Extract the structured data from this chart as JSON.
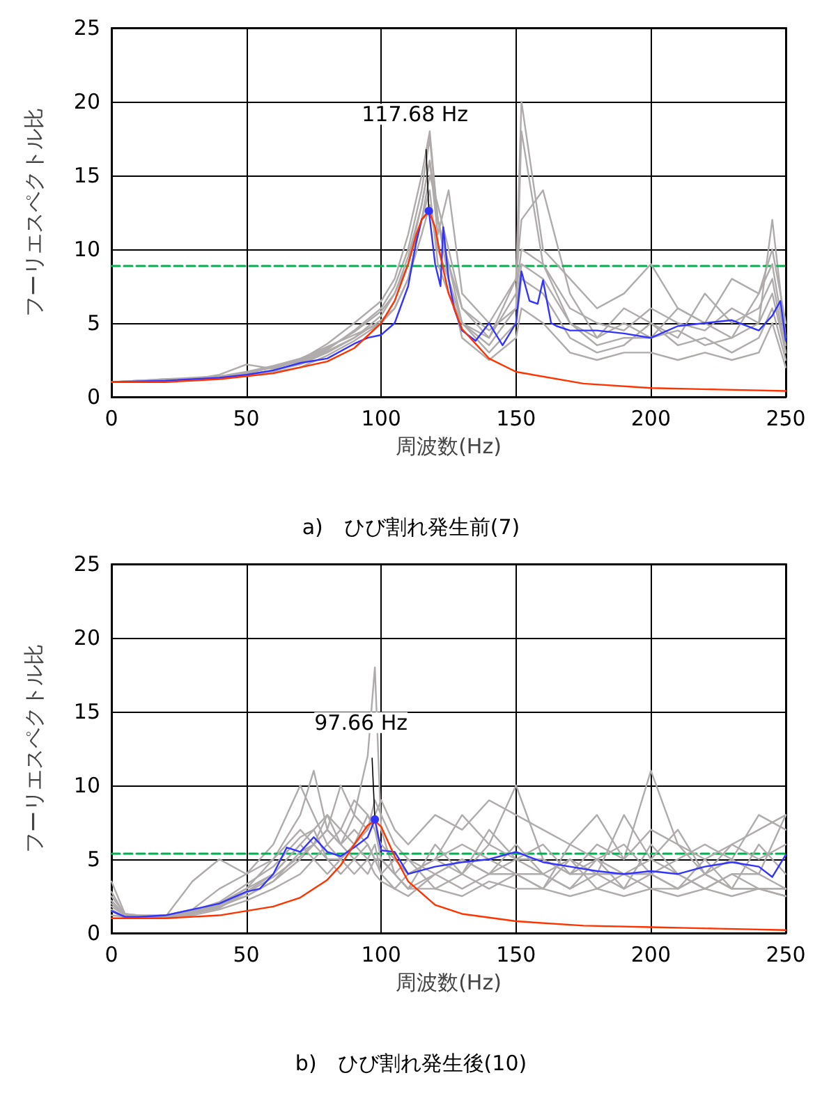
{
  "chart_data": [
    {
      "type": "line",
      "title": "a)　ひび割れ発生前(7)",
      "xlabel": "周波数(Hz)",
      "ylabel": "フーリエスペクトル比",
      "xlim": [
        0,
        250
      ],
      "xticks": [
        0,
        50,
        100,
        150,
        200,
        250
      ],
      "ylim": [
        0,
        25
      ],
      "yticks": [
        0,
        5,
        10,
        15,
        20,
        25
      ],
      "grid": true,
      "marker": "none",
      "line_style": "solid",
      "x": [
        0,
        10,
        20,
        30,
        40,
        50,
        60,
        70,
        80,
        90,
        100,
        105,
        110,
        115,
        118,
        121,
        125,
        130,
        140,
        150,
        152,
        160,
        170,
        180,
        190,
        200,
        210,
        220,
        230,
        240,
        245,
        250
      ],
      "ref_lines": [
        {
          "axis": "y",
          "value": 8.9,
          "color": "#00b050",
          "line_style": "dashed"
        }
      ],
      "annotations": [
        {
          "text": "117.68 Hz",
          "x": 117.68,
          "y": 12.6
        }
      ],
      "series": [
        {
          "color": "#b0abab",
          "values": [
            1,
            1.1,
            1.1,
            1.2,
            1.4,
            1.6,
            2.0,
            2.4,
            3.2,
            4.5,
            6.0,
            7.5,
            10,
            14,
            17.5,
            12,
            9,
            6,
            4.5,
            6,
            18,
            9,
            6,
            5,
            4.5,
            6,
            5,
            4.5,
            6,
            5,
            12,
            4
          ]
        },
        {
          "color": "#b0abab",
          "values": [
            1,
            1,
            1.1,
            1.2,
            1.3,
            1.5,
            1.8,
            2.2,
            3.0,
            4.0,
            5.5,
            7,
            9,
            13,
            16,
            11,
            14,
            7,
            5,
            8,
            12,
            14,
            7,
            4,
            6,
            5,
            4,
            7,
            5,
            6,
            8,
            3
          ]
        },
        {
          "color": "#b0abab",
          "values": [
            1,
            1.1,
            1.2,
            1.3,
            1.4,
            1.7,
            2.1,
            2.6,
            3.4,
            4.2,
            5,
            6,
            8,
            11,
            13,
            10,
            8,
            5,
            3,
            5,
            8,
            7,
            4,
            3,
            3.5,
            5,
            3.5,
            4,
            3,
            4,
            6,
            2.5
          ]
        },
        {
          "color": "#b0abab",
          "values": [
            1,
            1,
            1.1,
            1.1,
            1.3,
            1.4,
            1.7,
            2.0,
            2.8,
            3.8,
            5,
            6.5,
            9,
            12,
            15,
            13,
            10,
            6,
            4,
            7,
            10,
            9,
            5,
            4,
            5,
            4,
            6,
            5,
            4,
            7,
            9,
            3.5
          ]
        },
        {
          "color": "#b0abab",
          "values": [
            1,
            1.1,
            1.1,
            1.2,
            1.5,
            2.2,
            1.9,
            2.5,
            3.6,
            5.0,
            6.5,
            8,
            11,
            15,
            18,
            12,
            8,
            4,
            2.5,
            4,
            6,
            5,
            3,
            2.5,
            3,
            3,
            2.5,
            3,
            2.5,
            3,
            5,
            2
          ]
        },
        {
          "color": "#b0abab",
          "values": [
            1,
            1,
            1.1,
            1.2,
            1.3,
            1.5,
            1.8,
            2.3,
            3.1,
            4.0,
            5.2,
            6,
            8,
            12,
            14,
            9,
            7,
            5,
            3.5,
            6,
            9,
            8,
            5,
            3.5,
            4,
            4,
            4.5,
            3.5,
            4,
            5,
            7,
            3
          ]
        },
        {
          "color": "#b0abab",
          "values": [
            1,
            1.1,
            1.2,
            1.2,
            1.4,
            1.6,
            2.0,
            2.5,
            3.3,
            4.4,
            5.8,
            7,
            9.5,
            13,
            16,
            12,
            9,
            5,
            4,
            8,
            20,
            10,
            8,
            6,
            7,
            9,
            6,
            5,
            8,
            7,
            10,
            5
          ]
        },
        {
          "color": "#3333ff",
          "x": [
            0,
            20,
            40,
            50,
            60,
            70,
            80,
            90,
            95,
            100,
            105,
            110,
            113,
            115,
            117.68,
            120,
            122,
            123,
            125,
            127,
            130,
            135,
            140,
            145,
            150,
            152,
            155,
            158,
            160,
            163,
            165,
            170,
            180,
            190,
            200,
            210,
            220,
            230,
            240,
            245,
            248,
            250
          ],
          "values": [
            1.0,
            1.1,
            1.3,
            1.5,
            1.8,
            2.3,
            2.6,
            3.6,
            4.0,
            4.2,
            5.0,
            7.5,
            10.5,
            12.0,
            12.6,
            9.0,
            7.5,
            11.5,
            8.0,
            6.0,
            4.5,
            3.8,
            5.0,
            3.5,
            5.0,
            8.5,
            6.5,
            6.3,
            7.9,
            5.0,
            4.8,
            4.5,
            4.5,
            4.3,
            4.0,
            4.8,
            5.0,
            5.2,
            4.5,
            5.5,
            6.5,
            3.8
          ]
        },
        {
          "color": "#ff3300",
          "x": [
            0,
            20,
            40,
            60,
            80,
            90,
            100,
            105,
            110,
            113,
            115,
            117.68,
            120,
            122,
            125,
            130,
            140,
            150,
            175,
            200,
            225,
            250
          ],
          "values": [
            1.0,
            1.0,
            1.2,
            1.6,
            2.4,
            3.3,
            5.0,
            6.5,
            9.0,
            11,
            12,
            12.6,
            11.5,
            9.5,
            7,
            4.6,
            2.6,
            1.7,
            0.9,
            0.6,
            0.5,
            0.4
          ]
        }
      ]
    },
    {
      "type": "line",
      "title": "b)　ひび割れ発生後(10)",
      "xlabel": "周波数(Hz)",
      "ylabel": "フーリエスペクトル比",
      "xlim": [
        0,
        250
      ],
      "xticks": [
        0,
        50,
        100,
        150,
        200,
        250
      ],
      "ylim": [
        0,
        25
      ],
      "yticks": [
        0,
        5,
        10,
        15,
        20,
        25
      ],
      "grid": true,
      "marker": "none",
      "line_style": "solid",
      "x": [
        0,
        5,
        10,
        20,
        30,
        40,
        50,
        60,
        70,
        75,
        80,
        85,
        90,
        95,
        97.66,
        100,
        105,
        110,
        120,
        130,
        140,
        150,
        160,
        170,
        180,
        190,
        200,
        210,
        220,
        230,
        240,
        250
      ],
      "ref_lines": [
        {
          "axis": "y",
          "value": 5.4,
          "color": "#00b050",
          "line_style": "dashed"
        }
      ],
      "annotations": [
        {
          "text": "97.66 Hz",
          "x": 97.66,
          "y": 7.7
        }
      ],
      "series": [
        {
          "color": "#b0abab",
          "values": [
            3.5,
            1.3,
            1.2,
            1.1,
            3.5,
            5,
            4,
            6,
            10,
            8,
            6,
            7,
            9,
            8,
            7,
            6,
            5,
            4,
            5,
            8,
            6,
            10,
            5,
            4,
            6,
            5,
            11,
            6,
            4,
            5,
            8,
            7
          ]
        },
        {
          "color": "#b0abab",
          "values": [
            1.5,
            1.0,
            1.1,
            1.2,
            1.5,
            2,
            3,
            5,
            8,
            11,
            7,
            6,
            8,
            12,
            18,
            7,
            4,
            3,
            4,
            5,
            4,
            6,
            4,
            3,
            5,
            3,
            6,
            4,
            3,
            4,
            4,
            3
          ]
        },
        {
          "color": "#b0abab",
          "values": [
            2,
            1.2,
            1.0,
            1.0,
            1.3,
            2,
            2.5,
            3.5,
            5,
            6,
            7,
            10,
            8,
            7,
            9,
            8,
            6,
            5,
            3,
            4,
            3,
            4,
            3,
            5,
            3,
            4,
            3,
            3,
            5,
            3,
            3,
            2.5
          ]
        },
        {
          "color": "#b0abab",
          "values": [
            1.2,
            1.1,
            1.1,
            1.2,
            1.4,
            2,
            3,
            4,
            6,
            7,
            5,
            5,
            6,
            8,
            7,
            5,
            4,
            3,
            6,
            4,
            7,
            5,
            6,
            4,
            4,
            8,
            5,
            7,
            4,
            6,
            5,
            6
          ]
        },
        {
          "color": "#b0abab",
          "values": [
            2.5,
            1.3,
            1.2,
            1.2,
            1.6,
            3,
            4,
            5,
            7,
            6,
            8,
            6,
            7,
            6,
            5,
            4,
            3,
            4,
            5,
            6,
            5,
            4,
            3,
            6,
            5,
            4,
            4,
            3,
            4,
            3,
            6,
            4
          ]
        },
        {
          "color": "#b0abab",
          "values": [
            1.8,
            1.2,
            1.1,
            1.1,
            1.4,
            1.8,
            2.5,
            3.5,
            5.5,
            6,
            5,
            4,
            5,
            6,
            5,
            5,
            4,
            3,
            3,
            2.5,
            3.5,
            3,
            3,
            2.5,
            3,
            2.5,
            3,
            2.5,
            3,
            2.5,
            3,
            2.5
          ]
        },
        {
          "color": "#b0abab",
          "values": [
            1.5,
            1.1,
            1.0,
            1.0,
            1.2,
            1.6,
            2.2,
            3,
            4,
            5,
            6,
            5,
            6,
            5,
            4,
            3.5,
            3,
            2.5,
            4,
            3,
            4,
            4,
            4,
            3,
            4,
            3,
            4,
            3,
            4,
            3,
            3,
            3
          ]
        },
        {
          "color": "#b0abab",
          "values": [
            2.2,
            1.2,
            1.1,
            1.1,
            1.3,
            1.7,
            2.8,
            4,
            6,
            5,
            4,
            5,
            4,
            5,
            6,
            4,
            5,
            4,
            5,
            4,
            6,
            5,
            5,
            4,
            5,
            6,
            4,
            5,
            6,
            5,
            4,
            8
          ]
        },
        {
          "color": "#b0abab",
          "values": [
            1.6,
            1.1,
            1.1,
            1.1,
            1.4,
            1.9,
            2.7,
            3.8,
            5.2,
            6,
            7,
            6,
            5,
            4,
            5,
            5,
            4,
            5,
            4,
            5,
            4,
            5,
            4,
            5,
            4,
            4,
            5,
            4,
            3,
            4,
            3,
            3
          ]
        },
        {
          "color": "#b0abab",
          "values": [
            2.8,
            1.2,
            1.1,
            1.2,
            1.5,
            2.1,
            3.3,
            4.5,
            6.5,
            7,
            8,
            7,
            6,
            7,
            8,
            9,
            7,
            6,
            8,
            7,
            9,
            8,
            7,
            6,
            8,
            5,
            7,
            6,
            5,
            6,
            7,
            8
          ]
        },
        {
          "color": "#3333ff",
          "x": [
            0,
            5,
            10,
            20,
            30,
            40,
            50,
            55,
            60,
            65,
            70,
            75,
            80,
            85,
            90,
            95,
            97.66,
            100,
            105,
            110,
            120,
            130,
            140,
            150,
            160,
            170,
            180,
            190,
            200,
            210,
            220,
            230,
            240,
            245,
            250
          ],
          "values": [
            1.5,
            1.1,
            1.1,
            1.2,
            1.6,
            2.0,
            2.8,
            3.0,
            4.0,
            5.8,
            5.5,
            6.5,
            5.5,
            5.2,
            5.8,
            6.5,
            7.7,
            5.6,
            5.5,
            4.0,
            4.5,
            4.8,
            5.0,
            5.5,
            4.8,
            4.5,
            4.2,
            4.0,
            4.2,
            4.0,
            4.5,
            4.8,
            4.5,
            3.8,
            5.3
          ]
        },
        {
          "color": "#ff3300",
          "x": [
            0,
            20,
            40,
            60,
            70,
            80,
            85,
            90,
            95,
            97.66,
            100,
            105,
            110,
            120,
            130,
            150,
            175,
            200,
            225,
            250
          ],
          "values": [
            1.0,
            1.0,
            1.2,
            1.8,
            2.4,
            3.6,
            4.6,
            6.0,
            7.3,
            7.6,
            7.2,
            5.2,
            3.5,
            1.9,
            1.3,
            0.8,
            0.5,
            0.4,
            0.3,
            0.2
          ]
        }
      ]
    }
  ]
}
